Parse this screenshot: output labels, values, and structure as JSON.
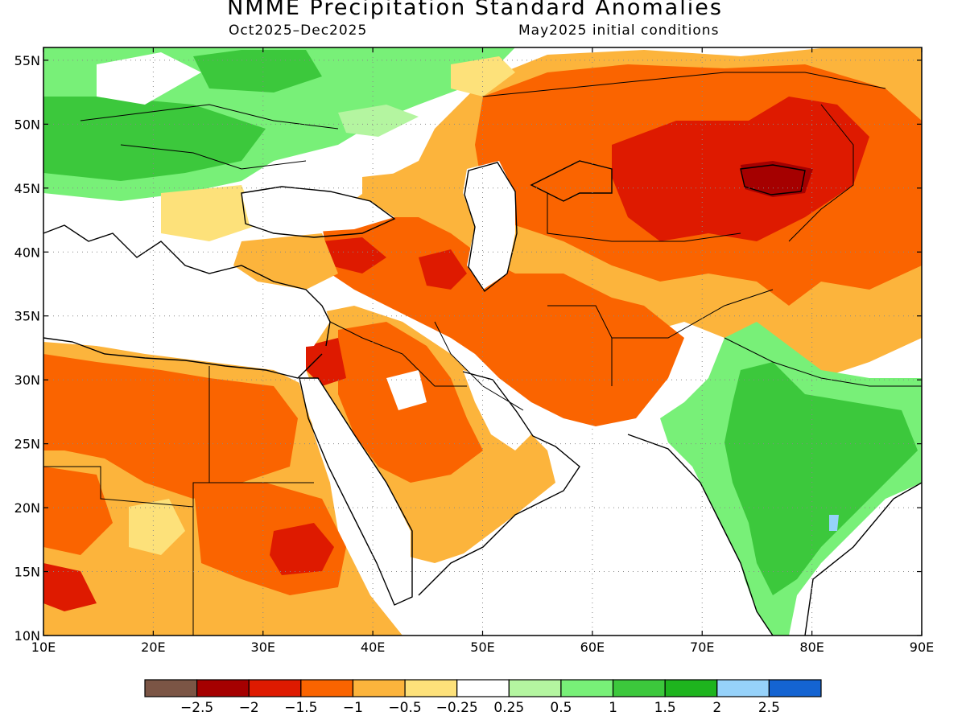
{
  "title": "NMME Precipitation Standard Anomalies",
  "subtitle_left": "Oct2025–Dec2025",
  "subtitle_right": "May2025 initial conditions",
  "map": {
    "lon_range": [
      10,
      90
    ],
    "lat_range": [
      10,
      56
    ],
    "lon_ticks": [
      {
        "value": 10,
        "label": "10E"
      },
      {
        "value": 20,
        "label": "20E"
      },
      {
        "value": 30,
        "label": "30E"
      },
      {
        "value": 40,
        "label": "40E"
      },
      {
        "value": 50,
        "label": "50E"
      },
      {
        "value": 60,
        "label": "60E"
      },
      {
        "value": 70,
        "label": "70E"
      },
      {
        "value": 80,
        "label": "80E"
      },
      {
        "value": 90,
        "label": "90E"
      }
    ],
    "lat_ticks": [
      {
        "value": 10,
        "label": "10N"
      },
      {
        "value": 15,
        "label": "15N"
      },
      {
        "value": 20,
        "label": "20N"
      },
      {
        "value": 25,
        "label": "25N"
      },
      {
        "value": 30,
        "label": "30N"
      },
      {
        "value": 35,
        "label": "35N"
      },
      {
        "value": 40,
        "label": "40N"
      },
      {
        "value": 45,
        "label": "45N"
      },
      {
        "value": 50,
        "label": "50N"
      },
      {
        "value": 55,
        "label": "55N"
      }
    ],
    "background_color": "#ffffff",
    "grid": "dotted"
  },
  "colorbar": {
    "colors": [
      "#7b5545",
      "#a50000",
      "#de1a00",
      "#fa6400",
      "#fcb43c",
      "#fde17a",
      "#ffffff",
      "#b4f5a0",
      "#78f078",
      "#3cc83c",
      "#1eb41e",
      "#96d2fa",
      "#1464d2"
    ],
    "labels": [
      "−2.5",
      "−2",
      "−1.5",
      "−1",
      "−0.5",
      "−0.25",
      "0.25",
      "0.5",
      "1",
      "1.5",
      "2",
      "2.5"
    ]
  }
}
